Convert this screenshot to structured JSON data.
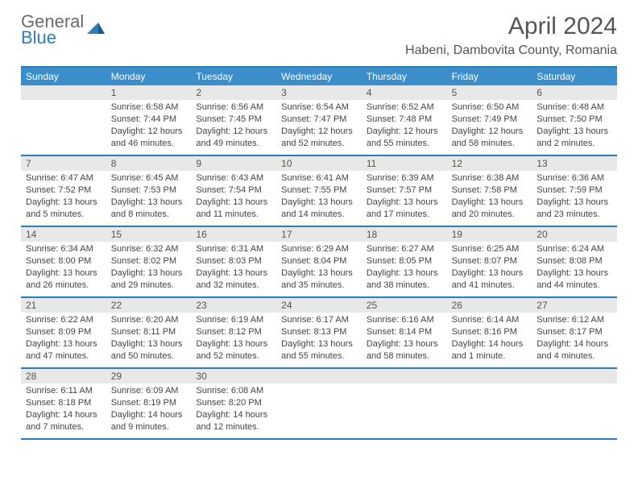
{
  "logo": {
    "line1": "General",
    "line2": "Blue"
  },
  "title": "April 2024",
  "location": "Habeni, Dambovita County, Romania",
  "weekdays": [
    "Sunday",
    "Monday",
    "Tuesday",
    "Wednesday",
    "Thursday",
    "Friday",
    "Saturday"
  ],
  "colors": {
    "header_bg": "#3b8ec9",
    "border": "#2a7fba",
    "daynum_bg": "#e8e8e8",
    "text": "#444444",
    "title_text": "#555555"
  },
  "weeks": [
    [
      {
        "n": "",
        "sr": "",
        "ss": "",
        "dl": ""
      },
      {
        "n": "1",
        "sr": "Sunrise: 6:58 AM",
        "ss": "Sunset: 7:44 PM",
        "dl": "Daylight: 12 hours and 46 minutes."
      },
      {
        "n": "2",
        "sr": "Sunrise: 6:56 AM",
        "ss": "Sunset: 7:45 PM",
        "dl": "Daylight: 12 hours and 49 minutes."
      },
      {
        "n": "3",
        "sr": "Sunrise: 6:54 AM",
        "ss": "Sunset: 7:47 PM",
        "dl": "Daylight: 12 hours and 52 minutes."
      },
      {
        "n": "4",
        "sr": "Sunrise: 6:52 AM",
        "ss": "Sunset: 7:48 PM",
        "dl": "Daylight: 12 hours and 55 minutes."
      },
      {
        "n": "5",
        "sr": "Sunrise: 6:50 AM",
        "ss": "Sunset: 7:49 PM",
        "dl": "Daylight: 12 hours and 58 minutes."
      },
      {
        "n": "6",
        "sr": "Sunrise: 6:48 AM",
        "ss": "Sunset: 7:50 PM",
        "dl": "Daylight: 13 hours and 2 minutes."
      }
    ],
    [
      {
        "n": "7",
        "sr": "Sunrise: 6:47 AM",
        "ss": "Sunset: 7:52 PM",
        "dl": "Daylight: 13 hours and 5 minutes."
      },
      {
        "n": "8",
        "sr": "Sunrise: 6:45 AM",
        "ss": "Sunset: 7:53 PM",
        "dl": "Daylight: 13 hours and 8 minutes."
      },
      {
        "n": "9",
        "sr": "Sunrise: 6:43 AM",
        "ss": "Sunset: 7:54 PM",
        "dl": "Daylight: 13 hours and 11 minutes."
      },
      {
        "n": "10",
        "sr": "Sunrise: 6:41 AM",
        "ss": "Sunset: 7:55 PM",
        "dl": "Daylight: 13 hours and 14 minutes."
      },
      {
        "n": "11",
        "sr": "Sunrise: 6:39 AM",
        "ss": "Sunset: 7:57 PM",
        "dl": "Daylight: 13 hours and 17 minutes."
      },
      {
        "n": "12",
        "sr": "Sunrise: 6:38 AM",
        "ss": "Sunset: 7:58 PM",
        "dl": "Daylight: 13 hours and 20 minutes."
      },
      {
        "n": "13",
        "sr": "Sunrise: 6:36 AM",
        "ss": "Sunset: 7:59 PM",
        "dl": "Daylight: 13 hours and 23 minutes."
      }
    ],
    [
      {
        "n": "14",
        "sr": "Sunrise: 6:34 AM",
        "ss": "Sunset: 8:00 PM",
        "dl": "Daylight: 13 hours and 26 minutes."
      },
      {
        "n": "15",
        "sr": "Sunrise: 6:32 AM",
        "ss": "Sunset: 8:02 PM",
        "dl": "Daylight: 13 hours and 29 minutes."
      },
      {
        "n": "16",
        "sr": "Sunrise: 6:31 AM",
        "ss": "Sunset: 8:03 PM",
        "dl": "Daylight: 13 hours and 32 minutes."
      },
      {
        "n": "17",
        "sr": "Sunrise: 6:29 AM",
        "ss": "Sunset: 8:04 PM",
        "dl": "Daylight: 13 hours and 35 minutes."
      },
      {
        "n": "18",
        "sr": "Sunrise: 6:27 AM",
        "ss": "Sunset: 8:05 PM",
        "dl": "Daylight: 13 hours and 38 minutes."
      },
      {
        "n": "19",
        "sr": "Sunrise: 6:25 AM",
        "ss": "Sunset: 8:07 PM",
        "dl": "Daylight: 13 hours and 41 minutes."
      },
      {
        "n": "20",
        "sr": "Sunrise: 6:24 AM",
        "ss": "Sunset: 8:08 PM",
        "dl": "Daylight: 13 hours and 44 minutes."
      }
    ],
    [
      {
        "n": "21",
        "sr": "Sunrise: 6:22 AM",
        "ss": "Sunset: 8:09 PM",
        "dl": "Daylight: 13 hours and 47 minutes."
      },
      {
        "n": "22",
        "sr": "Sunrise: 6:20 AM",
        "ss": "Sunset: 8:11 PM",
        "dl": "Daylight: 13 hours and 50 minutes."
      },
      {
        "n": "23",
        "sr": "Sunrise: 6:19 AM",
        "ss": "Sunset: 8:12 PM",
        "dl": "Daylight: 13 hours and 52 minutes."
      },
      {
        "n": "24",
        "sr": "Sunrise: 6:17 AM",
        "ss": "Sunset: 8:13 PM",
        "dl": "Daylight: 13 hours and 55 minutes."
      },
      {
        "n": "25",
        "sr": "Sunrise: 6:16 AM",
        "ss": "Sunset: 8:14 PM",
        "dl": "Daylight: 13 hours and 58 minutes."
      },
      {
        "n": "26",
        "sr": "Sunrise: 6:14 AM",
        "ss": "Sunset: 8:16 PM",
        "dl": "Daylight: 14 hours and 1 minute."
      },
      {
        "n": "27",
        "sr": "Sunrise: 6:12 AM",
        "ss": "Sunset: 8:17 PM",
        "dl": "Daylight: 14 hours and 4 minutes."
      }
    ],
    [
      {
        "n": "28",
        "sr": "Sunrise: 6:11 AM",
        "ss": "Sunset: 8:18 PM",
        "dl": "Daylight: 14 hours and 7 minutes."
      },
      {
        "n": "29",
        "sr": "Sunrise: 6:09 AM",
        "ss": "Sunset: 8:19 PM",
        "dl": "Daylight: 14 hours and 9 minutes."
      },
      {
        "n": "30",
        "sr": "Sunrise: 6:08 AM",
        "ss": "Sunset: 8:20 PM",
        "dl": "Daylight: 14 hours and 12 minutes."
      },
      {
        "n": "",
        "sr": "",
        "ss": "",
        "dl": ""
      },
      {
        "n": "",
        "sr": "",
        "ss": "",
        "dl": ""
      },
      {
        "n": "",
        "sr": "",
        "ss": "",
        "dl": ""
      },
      {
        "n": "",
        "sr": "",
        "ss": "",
        "dl": ""
      }
    ]
  ]
}
